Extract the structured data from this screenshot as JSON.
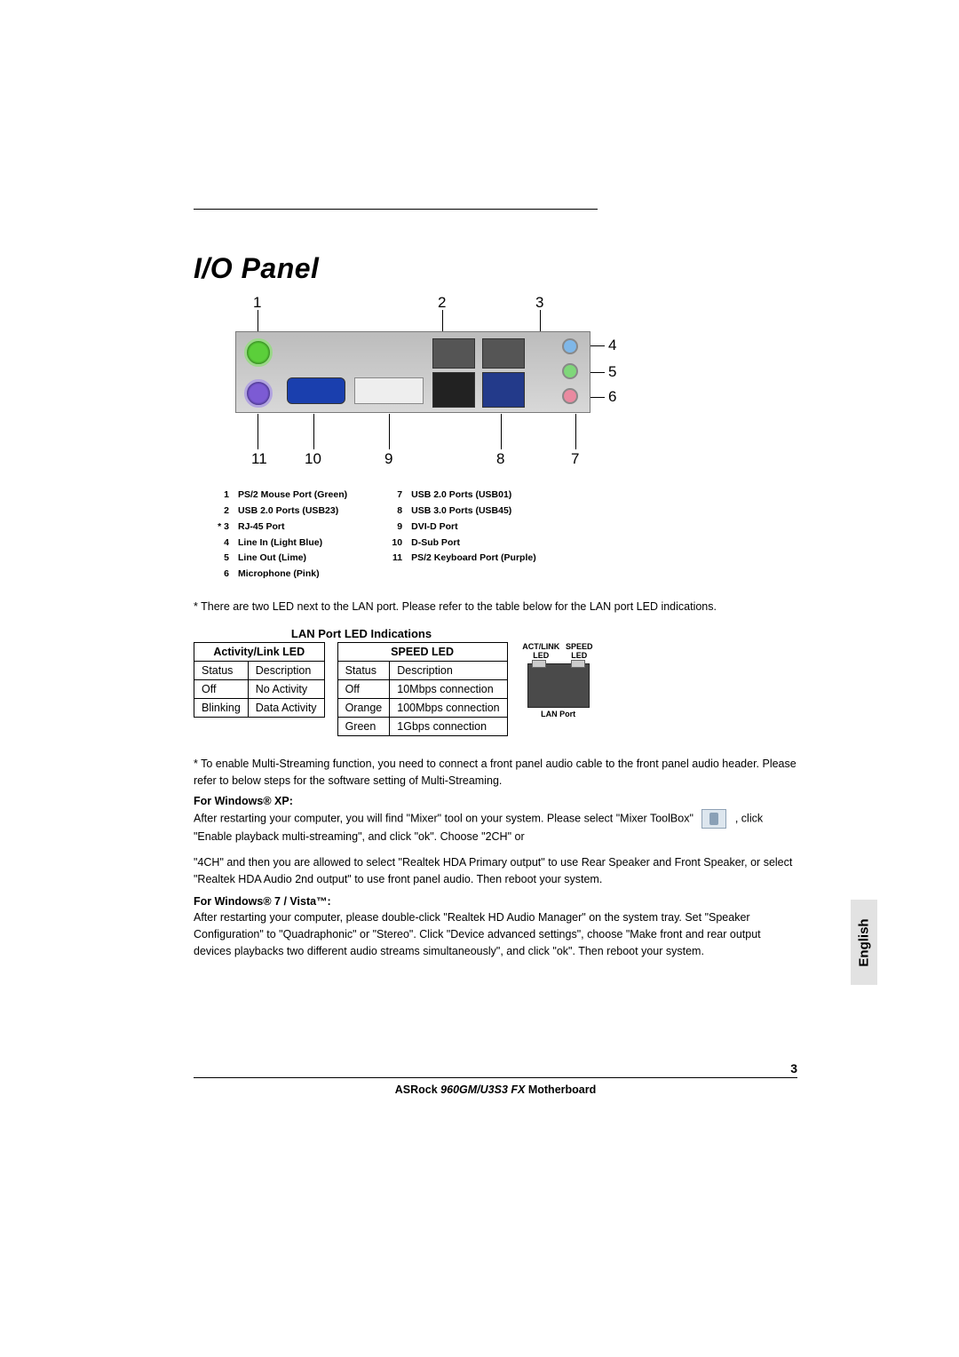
{
  "title": "I/O Panel",
  "diagram": {
    "top_numbers": {
      "n1": "1",
      "n2": "2",
      "n3": "3"
    },
    "right_numbers": {
      "n4": "4",
      "n5": "5",
      "n6": "6"
    },
    "bottom_numbers": {
      "n7": "7",
      "n8": "8",
      "n9": "9",
      "n10": "10",
      "n11": "11"
    }
  },
  "legend_left": [
    {
      "n": "1",
      "t": "PS/2  Mouse  Port  (Green)"
    },
    {
      "n": "2",
      "t": "USB 2.0  Ports  (USB23)"
    },
    {
      "n": "* 3",
      "t": "RJ-45  Port"
    },
    {
      "n": "4",
      "t": "Line  In  (Light Blue)"
    },
    {
      "n": "5",
      "t": "Line  Out  (Lime)"
    },
    {
      "n": "6",
      "t": "Microphone  (Pink)"
    }
  ],
  "legend_right": [
    {
      "n": "7",
      "t": "USB 2.0  Ports  (USB01)"
    },
    {
      "n": "8",
      "t": "USB 3.0  Ports  (USB45)"
    },
    {
      "n": "9",
      "t": "DVI-D  Port"
    },
    {
      "n": "10",
      "t": "D-Sub  Port"
    },
    {
      "n": "11",
      "t": "PS/2  Keyboard  Port  (Purple)"
    }
  ],
  "note1": "* There are two LED next to the LAN port. Please refer to the table below for the LAN port LED indications.",
  "led": {
    "title": "LAN Port LED Indications",
    "activity_hdr": "Activity/Link LED",
    "speed_hdr": "SPEED LED",
    "cols": {
      "status": "Status",
      "desc": "Description"
    },
    "activity_rows": [
      {
        "s": "Off",
        "d": "No Activity"
      },
      {
        "s": "Blinking",
        "d": "Data Activity"
      }
    ],
    "speed_rows": [
      {
        "s": "Off",
        "d": "10Mbps connection"
      },
      {
        "s": "Orange",
        "d": "100Mbps connection"
      },
      {
        "s": "Green",
        "d": "1Gbps connection"
      }
    ],
    "hdr_act": "ACT/LINK LED",
    "hdr_spd": "SPEED LED",
    "lanport": "LAN Port"
  },
  "note2_lead": "* To enable Multi-Streaming function, you need to connect a front panel audio cable to the front panel audio header. Please refer to below steps for the software setting of Multi-Streaming.",
  "xp_hdr": "For Windows® XP:",
  "xp_text1": "After restarting your computer, you will find \"Mixer\" tool on your system. Please select \"Mixer ToolBox\"",
  "xp_text2": ", click \"Enable playback multi-streaming\", and click \"ok\". Choose \"2CH\" or",
  "xp_text3": "\"4CH\" and then you are allowed to select \"Realtek HDA Primary output\" to use Rear Speaker and Front Speaker, or select \"Realtek HDA Audio 2nd output\" to use front panel audio. Then reboot your system.",
  "vista_hdr": "For Windows® 7 / Vista™:",
  "vista_text": "After restarting your computer, please double-click \"Realtek HD Audio Manager\" on the system tray. Set \"Speaker Configuration\" to \"Quadraphonic\" or \"Stereo\". Click \"Device advanced settings\", choose \"Make front and rear output devices playbacks two different audio streams simultaneously\", and click \"ok\". Then reboot your system.",
  "lang": "English",
  "footer": {
    "page": "3",
    "brand": "ASRock",
    "model": "960GM/U3S3 FX",
    "suffix": "Motherboard"
  }
}
